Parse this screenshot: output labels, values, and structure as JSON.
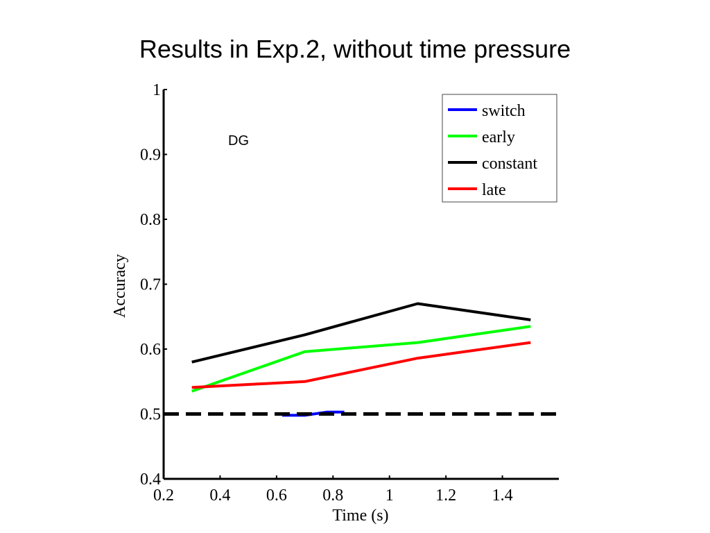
{
  "slide": {
    "title": "Results in Exp.2, without time pressure"
  },
  "chart_data": {
    "type": "line",
    "xlabel": "Time (s)",
    "ylabel": "Accuracy",
    "xlim": [
      0.2,
      1.6
    ],
    "ylim": [
      0.4,
      1.0
    ],
    "xticks": [
      0.2,
      0.4,
      0.6,
      0.8,
      1,
      1.2,
      1.4
    ],
    "yticks": [
      0.4,
      0.5,
      0.6,
      0.7,
      0.8,
      0.9,
      1
    ],
    "grid": false,
    "legend_position": "top-right",
    "annotation": "DG",
    "reference_line": {
      "y": 0.5,
      "style": "dashed",
      "color": "#000000"
    },
    "series": [
      {
        "name": "switch",
        "color": "#0000ff",
        "x": [
          0.62,
          0.7,
          0.78,
          0.84
        ],
        "y": [
          0.498,
          0.498,
          0.503,
          0.503
        ]
      },
      {
        "name": "early",
        "color": "#00ff00",
        "x": [
          0.3,
          0.7,
          1.1,
          1.5
        ],
        "y": [
          0.535,
          0.596,
          0.61,
          0.635
        ]
      },
      {
        "name": "constant",
        "color": "#000000",
        "x": [
          0.3,
          0.7,
          1.1,
          1.5
        ],
        "y": [
          0.58,
          0.622,
          0.67,
          0.645
        ]
      },
      {
        "name": "late",
        "color": "#ff0000",
        "x": [
          0.3,
          0.7,
          1.1,
          1.5
        ],
        "y": [
          0.541,
          0.55,
          0.586,
          0.61
        ]
      }
    ]
  }
}
